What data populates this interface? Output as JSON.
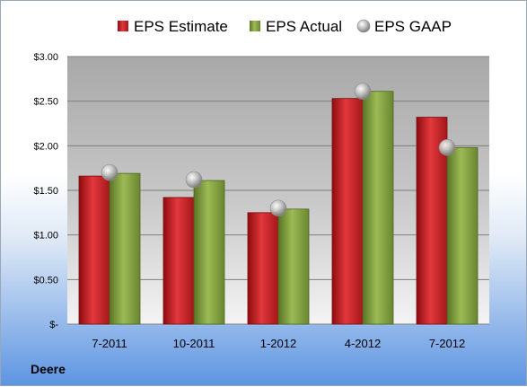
{
  "company": "Deere",
  "chart_data": {
    "type": "bar",
    "categories": [
      "7-2011",
      "10-2011",
      "1-2012",
      "4-2012",
      "7-2012"
    ],
    "series": [
      {
        "name": "EPS Estimate",
        "type": "bar",
        "color": "#c8181e",
        "values": [
          1.66,
          1.42,
          1.25,
          2.53,
          2.32
        ]
      },
      {
        "name": "EPS Actual",
        "type": "bar",
        "color": "#7e9c3a",
        "values": [
          1.69,
          1.61,
          1.29,
          2.61,
          1.98
        ]
      },
      {
        "name": "EPS GAAP",
        "type": "marker",
        "color": "#a6a6a6",
        "values": [
          1.7,
          1.62,
          1.3,
          2.61,
          1.98
        ]
      }
    ],
    "y_ticks": [
      "$3.00",
      "$2.50",
      "$2.00",
      "$1.50",
      "$1.00",
      "$0.50",
      "$-"
    ],
    "ylim": [
      0,
      3
    ],
    "grid": true,
    "legend_position": "top"
  }
}
